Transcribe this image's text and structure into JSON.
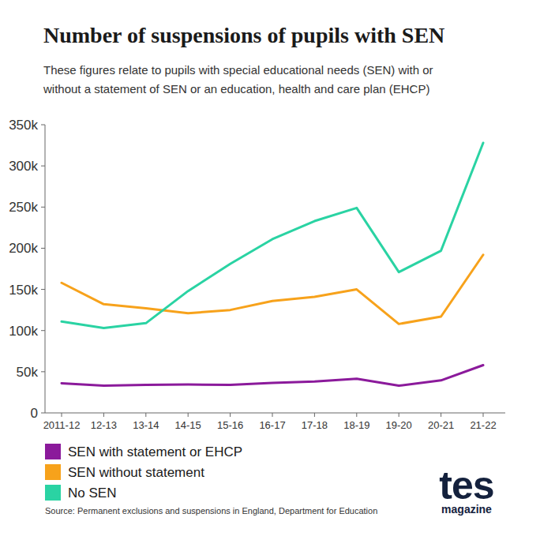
{
  "chart_data": {
    "type": "line",
    "title": "Number of suspensions of pupils with SEN",
    "subtitle": [
      "These figures relate to pupils with special educational needs (SEN) with or",
      "without a statement of SEN or an education, health and care plan (EHCP)"
    ],
    "source": "Source: Permanent exclusions and suspensions in England, Department for Education",
    "branding": [
      "tes",
      "magazine"
    ],
    "categories": [
      "2011-12",
      "12-13",
      "13-14",
      "14-15",
      "15-16",
      "16-17",
      "17-18",
      "18-19",
      "19-20",
      "20-21",
      "21-22"
    ],
    "series": [
      {
        "name": "SEN with statement or EHCP",
        "color": "#8b1a9b",
        "values": [
          36000,
          33000,
          34000,
          34500,
          34000,
          36500,
          38000,
          41500,
          33000,
          39500,
          58000
        ]
      },
      {
        "name": "SEN without statement",
        "color": "#f7a21b",
        "values": [
          158000,
          132000,
          127000,
          121000,
          125000,
          136000,
          141000,
          150000,
          108000,
          117000,
          192000
        ]
      },
      {
        "name": "No SEN",
        "color": "#2ad3a3",
        "values": [
          111000,
          103000,
          109000,
          148000,
          181000,
          211000,
          233000,
          249000,
          171000,
          197000,
          328000
        ]
      }
    ],
    "ylim": [
      0,
      350000
    ],
    "yticks": [
      0,
      {
        "value": 50000,
        "label": "50k"
      },
      {
        "value": 100000,
        "label": "100k"
      },
      {
        "value": 150000,
        "label": "150k"
      },
      {
        "value": 200000,
        "label": "200k"
      },
      {
        "value": 250000,
        "label": "250k"
      },
      {
        "value": 300000,
        "label": "300k"
      },
      {
        "value": 350000,
        "label": "350k"
      }
    ],
    "grid": false,
    "legend": "bottom-left"
  }
}
